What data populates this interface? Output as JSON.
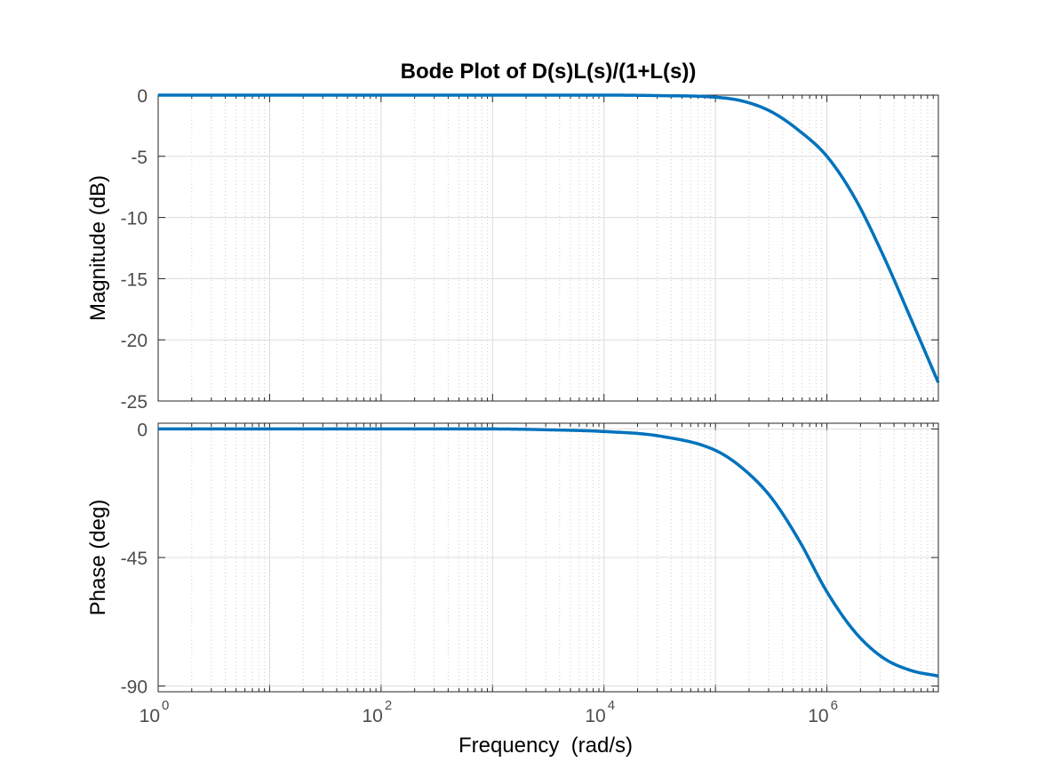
{
  "chart_data": {
    "type": "line",
    "title": "Bode Plot of D(s)L(s)/(1+L(s))",
    "xlabel": "Frequency  (rad/s)",
    "xscale": "log",
    "xlim": [
      1,
      10000000
    ],
    "xticks": [
      {
        "base": "10",
        "exp": "0",
        "value": 1
      },
      {
        "base": "10",
        "exp": "2",
        "value": 100
      },
      {
        "base": "10",
        "exp": "4",
        "value": 10000
      },
      {
        "base": "10",
        "exp": "6",
        "value": 1000000
      }
    ],
    "grid": true,
    "line_color": "#0072bd",
    "subplots": [
      {
        "name": "magnitude",
        "ylabel": "Magnitude (dB)",
        "ylim": [
          -25,
          0
        ],
        "yticks": [
          0,
          -5,
          -10,
          -15,
          -20,
          -25
        ],
        "series": [
          {
            "x": [
              1,
              10,
              100,
              1000,
              10000,
              31623,
              100000,
              177828,
              316228,
              562341,
              1000000,
              1778279,
              3162278,
              5623413,
              10000000
            ],
            "y": [
              0,
              0,
              0,
              0,
              0,
              -0.04,
              -0.17,
              -0.5,
              -1.35,
              -2.9,
              -5.0,
              -8.4,
              -13.0,
              -18.2,
              -23.5
            ]
          }
        ]
      },
      {
        "name": "phase",
        "ylabel": "Phase (deg)",
        "ylim": [
          -92,
          2
        ],
        "yticks": [
          0,
          -45,
          -90
        ],
        "series": [
          {
            "x": [
              1,
              10,
              100,
              1000,
              3162,
              10000,
              31623,
              100000,
              177828,
              316228,
              562341,
              1000000,
              1778279,
              3162278,
              5623413,
              10000000
            ],
            "y": [
              0,
              0,
              0,
              0,
              -0.3,
              -0.9,
              -2.5,
              -7.5,
              -14,
              -24,
              -39,
              -57,
              -71,
              -80,
              -84.5,
              -86.5
            ]
          }
        ]
      }
    ]
  }
}
